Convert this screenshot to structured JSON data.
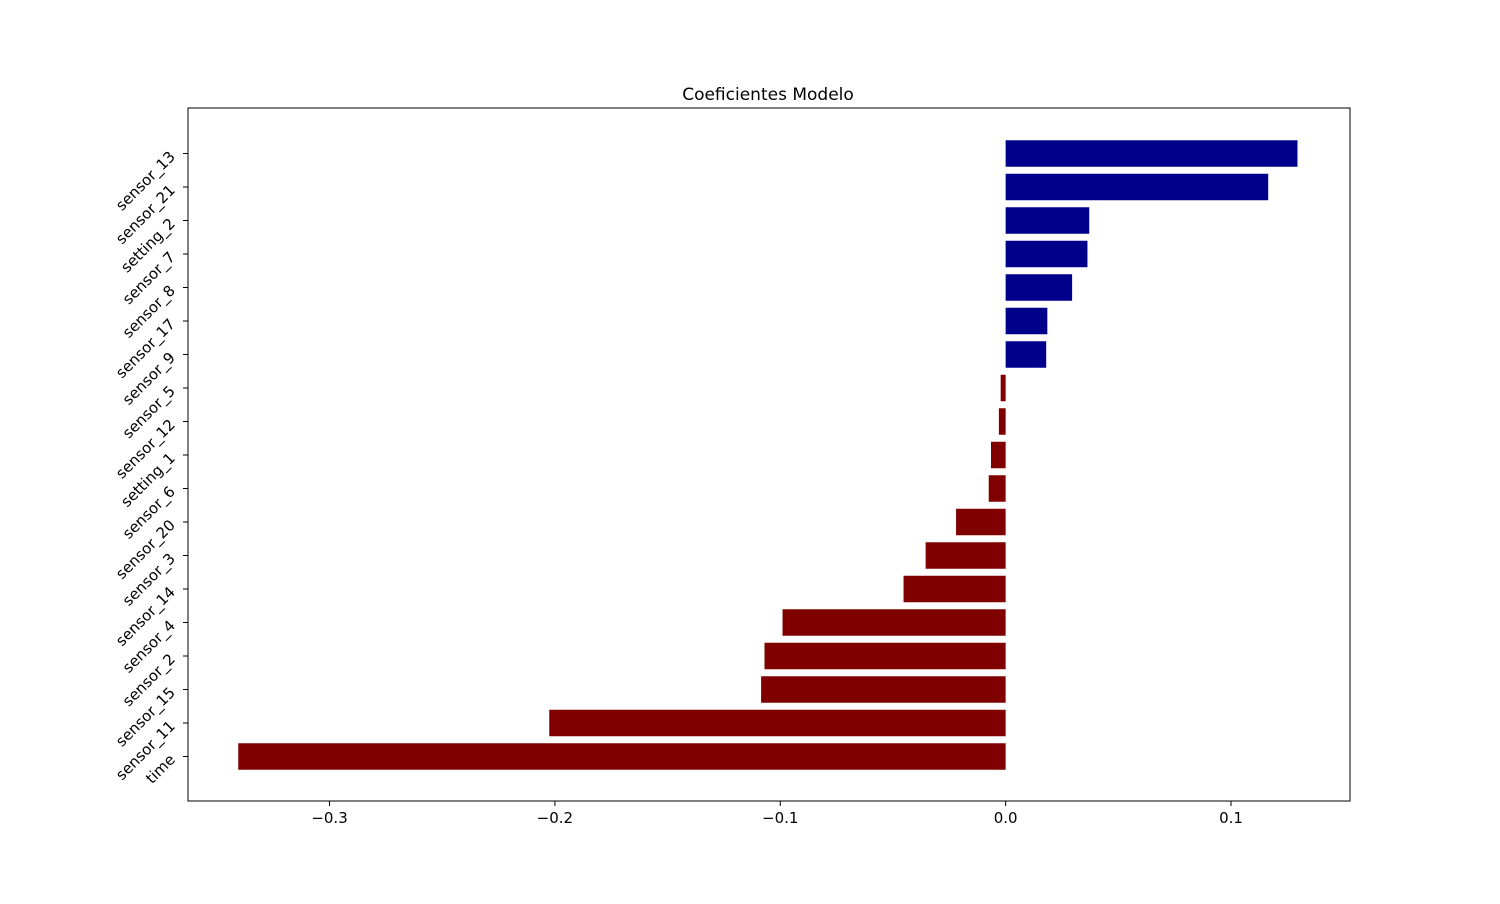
{
  "chart_data": {
    "type": "bar",
    "orientation": "horizontal",
    "title": "Coeficientes Modelo",
    "xlabel": "",
    "ylabel": "",
    "categories": [
      "sensor_13",
      "sensor_21",
      "setting_2",
      "sensor_7",
      "sensor_8",
      "sensor_17",
      "sensor_9",
      "sensor_5",
      "sensor_12",
      "setting_1",
      "sensor_6",
      "sensor_20",
      "sensor_3",
      "sensor_14",
      "sensor_4",
      "sensor_2",
      "sensor_15",
      "sensor_11",
      "time"
    ],
    "values": [
      0.1295,
      0.1165,
      0.0371,
      0.0363,
      0.0295,
      0.0185,
      0.018,
      -0.0022,
      -0.003,
      -0.0065,
      -0.0075,
      -0.022,
      -0.0355,
      -0.0453,
      -0.099,
      -0.107,
      -0.1085,
      -0.2025,
      -0.3405
    ],
    "xlim": [
      -0.3628,
      0.1528
    ],
    "xticks": [
      -0.3,
      -0.2,
      -0.1,
      0.0,
      0.1
    ],
    "xtick_labels": [
      "−0.3",
      "−0.2",
      "−0.1",
      "0.0",
      "0.1"
    ],
    "grid": false,
    "legend": "none",
    "colors": {
      "positive": "#00008b",
      "negative": "#800000"
    }
  }
}
